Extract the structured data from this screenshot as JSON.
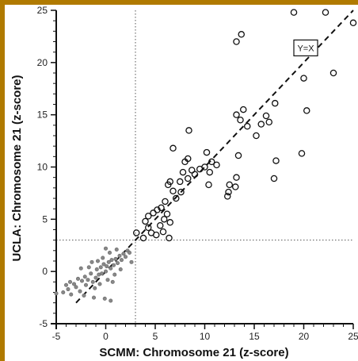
{
  "chart_data": {
    "type": "scatter",
    "xlabel": "SCMM: Chromosome 21 (z-score)",
    "ylabel": "UCLA: Chromosome 21 (z-score)",
    "xlim": [
      -5,
      25
    ],
    "ylim": [
      -5,
      25
    ],
    "x_ticks": [
      "-5",
      "0",
      "5",
      "10",
      "15",
      "20",
      "25"
    ],
    "y_ticks": [
      "-5",
      "0",
      "5",
      "10",
      "15",
      "20",
      "25"
    ],
    "reference_lines": {
      "x": 3,
      "y": 3,
      "style": "dotted"
    },
    "identity_line": {
      "label": "Y=X",
      "style": "dashed"
    },
    "series": [
      {
        "marker": "open-circle",
        "points": [
          [
            19,
            24.8
          ],
          [
            22.2,
            24.8
          ],
          [
            25,
            23.8
          ],
          [
            13.7,
            22.7
          ],
          [
            13.2,
            22
          ],
          [
            20,
            18.5
          ],
          [
            23,
            19
          ],
          [
            20.3,
            15.4
          ],
          [
            19.8,
            11.3
          ],
          [
            17.2,
            10.6
          ],
          [
            17,
            8.9
          ],
          [
            17.1,
            16.1
          ],
          [
            16.2,
            14.9
          ],
          [
            16.5,
            14.3
          ],
          [
            15.7,
            14.1
          ],
          [
            15.2,
            13
          ],
          [
            14.3,
            13.9
          ],
          [
            13.6,
            14.5
          ],
          [
            13.9,
            15.5
          ],
          [
            13.2,
            15
          ],
          [
            13.4,
            11.1
          ],
          [
            13.2,
            9
          ],
          [
            13.1,
            8.1
          ],
          [
            12.5,
            8.3
          ],
          [
            12.3,
            7.2
          ],
          [
            12.4,
            7.6
          ],
          [
            10.7,
            10.5
          ],
          [
            10.2,
            11.4
          ],
          [
            10,
            10
          ],
          [
            9.5,
            9.8
          ],
          [
            10.5,
            9.5
          ],
          [
            11.2,
            10.2
          ],
          [
            10.4,
            8.3
          ],
          [
            8.4,
            13.5
          ],
          [
            8.3,
            10.8
          ],
          [
            8,
            10.5
          ],
          [
            8.7,
            9.7
          ],
          [
            7.8,
            9.5
          ],
          [
            6.8,
            11.8
          ],
          [
            7.5,
            8.6
          ],
          [
            6.5,
            8.6
          ],
          [
            6.3,
            8.3
          ],
          [
            6.8,
            7.7
          ],
          [
            7.6,
            7.6
          ],
          [
            8.3,
            8.9
          ],
          [
            6,
            6.7
          ],
          [
            6.2,
            5.5
          ],
          [
            6.5,
            4.7
          ],
          [
            5.6,
            6.1
          ],
          [
            5.2,
            5.9
          ],
          [
            4.8,
            5.6
          ],
          [
            4.3,
            5.3
          ],
          [
            4,
            4.8
          ],
          [
            4.3,
            4.2
          ],
          [
            4.6,
            3.7
          ],
          [
            5.1,
            3.5
          ],
          [
            5.8,
            3.8
          ],
          [
            6.4,
            3.2
          ],
          [
            5.5,
            4.4
          ],
          [
            3.1,
            3.7
          ],
          [
            3.8,
            3.2
          ],
          [
            9,
            9.3
          ],
          [
            7.1,
            7
          ],
          [
            5.9,
            5
          ]
        ]
      },
      {
        "marker": "small-dot",
        "points": [
          [
            -5,
            -2.1
          ],
          [
            -4.3,
            -2
          ],
          [
            -3.8,
            -1.7
          ],
          [
            -3.5,
            -2.2
          ],
          [
            -3,
            -1.5
          ],
          [
            -3.2,
            -1.2
          ],
          [
            -2.6,
            -1.9
          ],
          [
            -2.4,
            -0.9
          ],
          [
            -2,
            -1.3
          ],
          [
            -2.1,
            -0.5
          ],
          [
            -1.8,
            -0.8
          ],
          [
            -1.5,
            -0.2
          ],
          [
            -1.3,
            -1
          ],
          [
            -1,
            -0.6
          ],
          [
            -0.9,
            0.2
          ],
          [
            -0.7,
            -0.3
          ],
          [
            -0.5,
            0.4
          ],
          [
            -0.4,
            -0.2
          ],
          [
            -0.2,
            0.7
          ],
          [
            0,
            0
          ],
          [
            0.1,
            0.5
          ],
          [
            0.3,
            0.9
          ],
          [
            0.5,
            0.3
          ],
          [
            0.6,
            1.1
          ],
          [
            0.8,
            0.6
          ],
          [
            1,
            1.2
          ],
          [
            1.2,
            0.8
          ],
          [
            1.4,
            1.5
          ],
          [
            1.6,
            1.1
          ],
          [
            1.8,
            1.7
          ],
          [
            2,
            1.4
          ],
          [
            2.2,
            2
          ],
          [
            2.4,
            1.8
          ],
          [
            -1.1,
            -1.6
          ],
          [
            -0.6,
            -1.2
          ],
          [
            0.2,
            -0.8
          ],
          [
            0.9,
            -0.3
          ],
          [
            -2.8,
            -0.7
          ],
          [
            -1.7,
            0.4
          ],
          [
            -0.3,
            1.3
          ],
          [
            0.4,
            1.8
          ],
          [
            1.1,
            2.1
          ],
          [
            -3.6,
            -1
          ],
          [
            -2.2,
            -2.3
          ],
          [
            -1.4,
            0.9
          ],
          [
            0.7,
            -1
          ],
          [
            1.5,
            0.2
          ],
          [
            2.6,
            0.9
          ],
          [
            -0.8,
            1
          ],
          [
            0,
            2.2
          ],
          [
            -1.2,
            -2.5
          ],
          [
            -0.1,
            -2.6
          ],
          [
            0.5,
            -2.8
          ],
          [
            -4,
            -1.3
          ],
          [
            -2.5,
            0.3
          ]
        ]
      }
    ]
  }
}
